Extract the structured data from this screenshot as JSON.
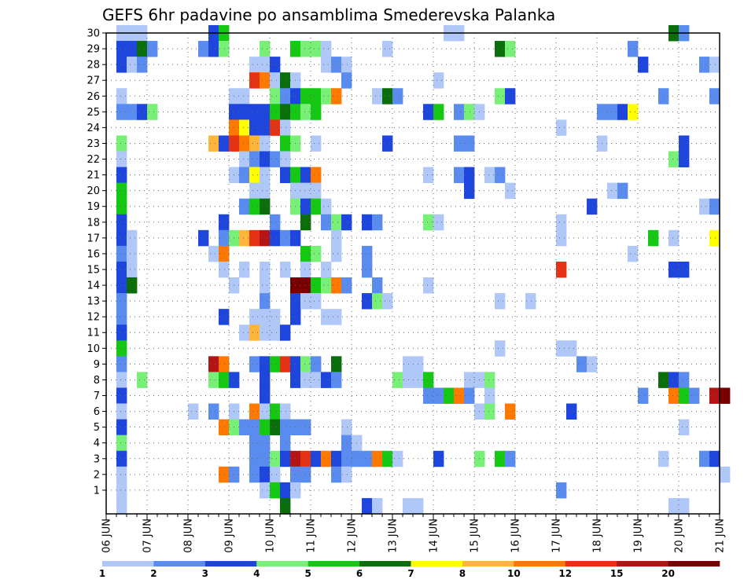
{
  "chart_data": {
    "type": "heatmap",
    "title": "GEFS 6hr padavine po ansamblima Smederevska Palanka",
    "x_ticks": [
      "06 JUN",
      "07 JUN",
      "08 JUN",
      "09 JUN",
      "10 JUN",
      "11 JUN",
      "12 JUN",
      "13 JUN",
      "14 JUN",
      "15 JUN",
      "16 JUN",
      "17 JUN",
      "18 JUN",
      "19 JUN",
      "20 JUN",
      "21 JUN"
    ],
    "y_ticks": [
      "1",
      "2",
      "3",
      "4",
      "5",
      "6",
      "7",
      "8",
      "9",
      "10",
      "11",
      "12",
      "13",
      "14",
      "15",
      "16",
      "17",
      "18",
      "19",
      "20",
      "21",
      "22",
      "23",
      "24",
      "25",
      "26",
      "27",
      "28",
      "29",
      "30"
    ],
    "steps_per_day": 4,
    "grid": true,
    "colorbar": {
      "labels": [
        "1",
        "2",
        "3",
        "4",
        "5",
        "6",
        "7",
        "8",
        "10",
        "12",
        "15",
        "20"
      ],
      "colors": [
        "#b0c8f8",
        "#5a8cf0",
        "#1e46dc",
        "#78f078",
        "#14c814",
        "#0a6e0a",
        "#ffff00",
        "#ffb43c",
        "#ff7800",
        "#e63214",
        "#b41414",
        "#780000"
      ]
    },
    "cells": [
      [
        1,
        30,
        1
      ],
      [
        2,
        30,
        1
      ],
      [
        3,
        30,
        1
      ],
      [
        10,
        30,
        3
      ],
      [
        11,
        30,
        5
      ],
      [
        33,
        30,
        1
      ],
      [
        34,
        30,
        1
      ],
      [
        55,
        30,
        6
      ],
      [
        56,
        30,
        2
      ],
      [
        1,
        29,
        3
      ],
      [
        2,
        29,
        3
      ],
      [
        3,
        29,
        6
      ],
      [
        4,
        29,
        2
      ],
      [
        9,
        29,
        2
      ],
      [
        10,
        29,
        3
      ],
      [
        11,
        29,
        4
      ],
      [
        15,
        29,
        4
      ],
      [
        18,
        29,
        5
      ],
      [
        19,
        29,
        4
      ],
      [
        20,
        29,
        4
      ],
      [
        21,
        29,
        1
      ],
      [
        27,
        29,
        1
      ],
      [
        38,
        29,
        6
      ],
      [
        39,
        29,
        4
      ],
      [
        51,
        29,
        2
      ],
      [
        1,
        28,
        3
      ],
      [
        2,
        28,
        1
      ],
      [
        3,
        28,
        2
      ],
      [
        14,
        28,
        1
      ],
      [
        15,
        28,
        1
      ],
      [
        16,
        28,
        3
      ],
      [
        21,
        28,
        1
      ],
      [
        22,
        28,
        2
      ],
      [
        23,
        28,
        1
      ],
      [
        52,
        28,
        3
      ],
      [
        58,
        28,
        2
      ],
      [
        59,
        28,
        1
      ],
      [
        14,
        27,
        10
      ],
      [
        15,
        27,
        9
      ],
      [
        16,
        27,
        1
      ],
      [
        17,
        27,
        6
      ],
      [
        18,
        27,
        1
      ],
      [
        23,
        27,
        2
      ],
      [
        32,
        27,
        1
      ],
      [
        1,
        26,
        1
      ],
      [
        12,
        26,
        1
      ],
      [
        13,
        26,
        1
      ],
      [
        16,
        26,
        4
      ],
      [
        17,
        26,
        2
      ],
      [
        18,
        26,
        3
      ],
      [
        19,
        26,
        5
      ],
      [
        20,
        26,
        5
      ],
      [
        21,
        26,
        4
      ],
      [
        22,
        26,
        9
      ],
      [
        26,
        26,
        1
      ],
      [
        27,
        26,
        6
      ],
      [
        28,
        26,
        2
      ],
      [
        38,
        26,
        4
      ],
      [
        39,
        26,
        3
      ],
      [
        54,
        26,
        2
      ],
      [
        59,
        26,
        2
      ],
      [
        1,
        25,
        2
      ],
      [
        2,
        25,
        2
      ],
      [
        3,
        25,
        3
      ],
      [
        4,
        25,
        4
      ],
      [
        12,
        25,
        3
      ],
      [
        13,
        25,
        3
      ],
      [
        14,
        25,
        3
      ],
      [
        15,
        25,
        3
      ],
      [
        16,
        25,
        5
      ],
      [
        17,
        25,
        6
      ],
      [
        18,
        25,
        5
      ],
      [
        19,
        25,
        4
      ],
      [
        20,
        25,
        5
      ],
      [
        31,
        25,
        3
      ],
      [
        32,
        25,
        5
      ],
      [
        34,
        25,
        2
      ],
      [
        35,
        25,
        4
      ],
      [
        36,
        25,
        1
      ],
      [
        48,
        25,
        2
      ],
      [
        49,
        25,
        2
      ],
      [
        50,
        25,
        3
      ],
      [
        51,
        25,
        7
      ],
      [
        12,
        24,
        9
      ],
      [
        13,
        24,
        7
      ],
      [
        14,
        24,
        3
      ],
      [
        15,
        24,
        3
      ],
      [
        16,
        24,
        10
      ],
      [
        17,
        24,
        1
      ],
      [
        44,
        24,
        1
      ],
      [
        1,
        23,
        4
      ],
      [
        10,
        23,
        8
      ],
      [
        11,
        23,
        3
      ],
      [
        12,
        23,
        10
      ],
      [
        13,
        23,
        9
      ],
      [
        14,
        23,
        8
      ],
      [
        15,
        23,
        1
      ],
      [
        17,
        23,
        5
      ],
      [
        18,
        23,
        4
      ],
      [
        20,
        23,
        1
      ],
      [
        27,
        23,
        3
      ],
      [
        34,
        23,
        2
      ],
      [
        35,
        23,
        2
      ],
      [
        48,
        23,
        1
      ],
      [
        56,
        23,
        3
      ],
      [
        1,
        22,
        1
      ],
      [
        13,
        22,
        1
      ],
      [
        14,
        22,
        2
      ],
      [
        15,
        22,
        3
      ],
      [
        16,
        22,
        2
      ],
      [
        17,
        22,
        1
      ],
      [
        55,
        22,
        4
      ],
      [
        56,
        22,
        3
      ],
      [
        1,
        21,
        3
      ],
      [
        12,
        21,
        1
      ],
      [
        13,
        21,
        2
      ],
      [
        14,
        21,
        7
      ],
      [
        15,
        21,
        1
      ],
      [
        17,
        21,
        3
      ],
      [
        18,
        21,
        5
      ],
      [
        19,
        21,
        3
      ],
      [
        20,
        21,
        9
      ],
      [
        31,
        21,
        1
      ],
      [
        34,
        21,
        2
      ],
      [
        35,
        21,
        3
      ],
      [
        37,
        21,
        1
      ],
      [
        38,
        21,
        2
      ],
      [
        1,
        20,
        5
      ],
      [
        14,
        20,
        1
      ],
      [
        15,
        20,
        1
      ],
      [
        18,
        20,
        1
      ],
      [
        19,
        20,
        1
      ],
      [
        20,
        20,
        1
      ],
      [
        35,
        20,
        3
      ],
      [
        39,
        20,
        1
      ],
      [
        49,
        20,
        1
      ],
      [
        50,
        20,
        2
      ],
      [
        1,
        19,
        5
      ],
      [
        13,
        19,
        2
      ],
      [
        14,
        19,
        5
      ],
      [
        15,
        19,
        6
      ],
      [
        18,
        19,
        4
      ],
      [
        19,
        19,
        3
      ],
      [
        20,
        19,
        5
      ],
      [
        21,
        19,
        1
      ],
      [
        47,
        19,
        3
      ],
      [
        58,
        19,
        1
      ],
      [
        59,
        19,
        2
      ],
      [
        1,
        18,
        3
      ],
      [
        11,
        18,
        3
      ],
      [
        16,
        18,
        2
      ],
      [
        19,
        18,
        6
      ],
      [
        21,
        18,
        2
      ],
      [
        22,
        18,
        4
      ],
      [
        23,
        18,
        3
      ],
      [
        25,
        18,
        3
      ],
      [
        26,
        18,
        2
      ],
      [
        31,
        18,
        4
      ],
      [
        32,
        18,
        1
      ],
      [
        44,
        18,
        1
      ],
      [
        1,
        17,
        3
      ],
      [
        2,
        17,
        1
      ],
      [
        9,
        17,
        3
      ],
      [
        11,
        17,
        2
      ],
      [
        12,
        17,
        4
      ],
      [
        13,
        17,
        8
      ],
      [
        14,
        17,
        10
      ],
      [
        15,
        17,
        11
      ],
      [
        16,
        17,
        3
      ],
      [
        17,
        17,
        2
      ],
      [
        18,
        17,
        3
      ],
      [
        22,
        17,
        1
      ],
      [
        44,
        17,
        1
      ],
      [
        53,
        17,
        5
      ],
      [
        55,
        17,
        1
      ],
      [
        59,
        17,
        7
      ],
      [
        1,
        16,
        2
      ],
      [
        2,
        16,
        1
      ],
      [
        10,
        16,
        1
      ],
      [
        11,
        16,
        9
      ],
      [
        19,
        16,
        5
      ],
      [
        20,
        16,
        4
      ],
      [
        22,
        16,
        1
      ],
      [
        25,
        16,
        2
      ],
      [
        51,
        16,
        1
      ],
      [
        1,
        15,
        3
      ],
      [
        2,
        15,
        1
      ],
      [
        11,
        15,
        1
      ],
      [
        13,
        15,
        1
      ],
      [
        15,
        15,
        1
      ],
      [
        17,
        15,
        1
      ],
      [
        19,
        15,
        1
      ],
      [
        21,
        15,
        1
      ],
      [
        25,
        15,
        2
      ],
      [
        44,
        15,
        10
      ],
      [
        55,
        15,
        3
      ],
      [
        56,
        15,
        3
      ],
      [
        1,
        14,
        3
      ],
      [
        2,
        14,
        6
      ],
      [
        12,
        14,
        1
      ],
      [
        15,
        14,
        1
      ],
      [
        18,
        14,
        12
      ],
      [
        19,
        14,
        12
      ],
      [
        20,
        14,
        5
      ],
      [
        21,
        14,
        4
      ],
      [
        22,
        14,
        9
      ],
      [
        23,
        14,
        2
      ],
      [
        26,
        14,
        2
      ],
      [
        31,
        14,
        1
      ],
      [
        1,
        13,
        2
      ],
      [
        15,
        13,
        2
      ],
      [
        18,
        13,
        3
      ],
      [
        19,
        13,
        1
      ],
      [
        20,
        13,
        1
      ],
      [
        25,
        13,
        3
      ],
      [
        26,
        13,
        4
      ],
      [
        27,
        13,
        1
      ],
      [
        38,
        13,
        1
      ],
      [
        41,
        13,
        1
      ],
      [
        1,
        12,
        2
      ],
      [
        11,
        12,
        3
      ],
      [
        14,
        12,
        1
      ],
      [
        15,
        12,
        1
      ],
      [
        16,
        12,
        1
      ],
      [
        18,
        12,
        3
      ],
      [
        21,
        12,
        1
      ],
      [
        22,
        12,
        1
      ],
      [
        1,
        11,
        3
      ],
      [
        13,
        11,
        1
      ],
      [
        14,
        11,
        8
      ],
      [
        15,
        11,
        1
      ],
      [
        16,
        11,
        1
      ],
      [
        17,
        11,
        3
      ],
      [
        1,
        10,
        5
      ],
      [
        38,
        10,
        1
      ],
      [
        44,
        10,
        1
      ],
      [
        45,
        10,
        1
      ],
      [
        1,
        9,
        2
      ],
      [
        10,
        9,
        11
      ],
      [
        11,
        9,
        9
      ],
      [
        14,
        9,
        2
      ],
      [
        15,
        9,
        3
      ],
      [
        16,
        9,
        5
      ],
      [
        17,
        9,
        10
      ],
      [
        18,
        9,
        3
      ],
      [
        19,
        9,
        4
      ],
      [
        20,
        9,
        2
      ],
      [
        22,
        9,
        6
      ],
      [
        29,
        9,
        1
      ],
      [
        30,
        9,
        1
      ],
      [
        46,
        9,
        2
      ],
      [
        47,
        9,
        1
      ],
      [
        1,
        8,
        1
      ],
      [
        3,
        8,
        4
      ],
      [
        10,
        8,
        4
      ],
      [
        11,
        8,
        5
      ],
      [
        12,
        8,
        3
      ],
      [
        15,
        8,
        3
      ],
      [
        18,
        8,
        3
      ],
      [
        19,
        8,
        1
      ],
      [
        20,
        8,
        1
      ],
      [
        21,
        8,
        3
      ],
      [
        22,
        8,
        2
      ],
      [
        28,
        8,
        4
      ],
      [
        29,
        8,
        1
      ],
      [
        30,
        8,
        1
      ],
      [
        31,
        8,
        5
      ],
      [
        35,
        8,
        1
      ],
      [
        36,
        8,
        1
      ],
      [
        37,
        8,
        4
      ],
      [
        54,
        8,
        6
      ],
      [
        55,
        8,
        3
      ],
      [
        56,
        8,
        2
      ],
      [
        1,
        7,
        3
      ],
      [
        15,
        7,
        3
      ],
      [
        31,
        7,
        2
      ],
      [
        32,
        7,
        2
      ],
      [
        33,
        7,
        5
      ],
      [
        34,
        7,
        9
      ],
      [
        35,
        7,
        2
      ],
      [
        37,
        7,
        1
      ],
      [
        52,
        7,
        2
      ],
      [
        55,
        7,
        9
      ],
      [
        56,
        7,
        5
      ],
      [
        57,
        7,
        2
      ],
      [
        59,
        7,
        11
      ],
      [
        60,
        7,
        12
      ],
      [
        1,
        6,
        1
      ],
      [
        8,
        6,
        1
      ],
      [
        10,
        6,
        2
      ],
      [
        12,
        6,
        1
      ],
      [
        14,
        6,
        9
      ],
      [
        15,
        6,
        1
      ],
      [
        16,
        6,
        5
      ],
      [
        17,
        6,
        1
      ],
      [
        36,
        6,
        1
      ],
      [
        37,
        6,
        4
      ],
      [
        39,
        6,
        9
      ],
      [
        45,
        6,
        3
      ],
      [
        1,
        5,
        3
      ],
      [
        11,
        5,
        9
      ],
      [
        12,
        5,
        4
      ],
      [
        13,
        5,
        2
      ],
      [
        14,
        5,
        2
      ],
      [
        15,
        5,
        5
      ],
      [
        16,
        5,
        6
      ],
      [
        17,
        5,
        2
      ],
      [
        18,
        5,
        2
      ],
      [
        19,
        5,
        2
      ],
      [
        23,
        5,
        1
      ],
      [
        56,
        5,
        1
      ],
      [
        1,
        4,
        4
      ],
      [
        14,
        4,
        2
      ],
      [
        15,
        4,
        2
      ],
      [
        17,
        4,
        2
      ],
      [
        23,
        4,
        2
      ],
      [
        24,
        4,
        1
      ],
      [
        1,
        3,
        3
      ],
      [
        14,
        3,
        2
      ],
      [
        15,
        3,
        2
      ],
      [
        16,
        3,
        4
      ],
      [
        17,
        3,
        3
      ],
      [
        18,
        3,
        11
      ],
      [
        19,
        3,
        10
      ],
      [
        20,
        3,
        3
      ],
      [
        21,
        3,
        9
      ],
      [
        22,
        3,
        3
      ],
      [
        23,
        3,
        2
      ],
      [
        24,
        3,
        2
      ],
      [
        25,
        3,
        2
      ],
      [
        26,
        3,
        9
      ],
      [
        27,
        3,
        5
      ],
      [
        28,
        3,
        1
      ],
      [
        32,
        3,
        3
      ],
      [
        36,
        3,
        4
      ],
      [
        38,
        3,
        5
      ],
      [
        39,
        3,
        2
      ],
      [
        54,
        3,
        1
      ],
      [
        58,
        3,
        2
      ],
      [
        59,
        3,
        3
      ],
      [
        1,
        2,
        1
      ],
      [
        11,
        2,
        9
      ],
      [
        12,
        2,
        2
      ],
      [
        14,
        2,
        2
      ],
      [
        15,
        2,
        3
      ],
      [
        16,
        2,
        1
      ],
      [
        18,
        2,
        2
      ],
      [
        19,
        2,
        2
      ],
      [
        22,
        2,
        2
      ],
      [
        23,
        2,
        1
      ],
      [
        60,
        2,
        1
      ],
      [
        1,
        1,
        1
      ],
      [
        15,
        1,
        1
      ],
      [
        16,
        1,
        5
      ],
      [
        17,
        1,
        3
      ],
      [
        18,
        1,
        1
      ],
      [
        44,
        1,
        2
      ],
      [
        1,
        0,
        1
      ],
      [
        17,
        0,
        6
      ],
      [
        25,
        0,
        3
      ],
      [
        26,
        0,
        1
      ],
      [
        29,
        0,
        1
      ],
      [
        30,
        0,
        1
      ],
      [
        55,
        0,
        1
      ],
      [
        56,
        0,
        1
      ]
    ]
  }
}
